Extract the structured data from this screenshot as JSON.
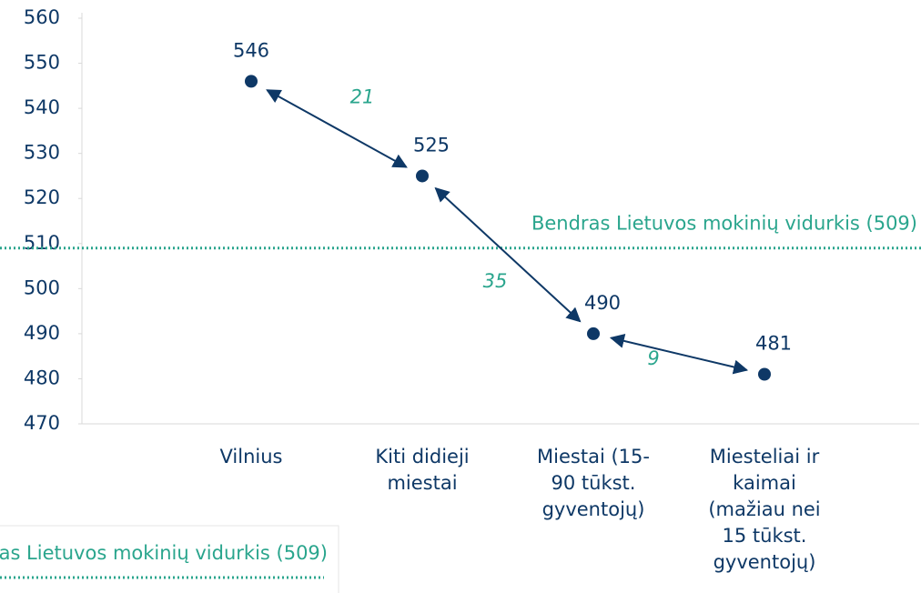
{
  "chart_data": {
    "type": "dot",
    "categories": [
      "Vilnius",
      "Kiti didieji\nmiestai",
      "Miestai (15-\n90 tūkst.\ngyventojų)",
      "Miesteliai ir\nkaimai\n(mažiau nei\n15 tūkst.\ngyventojų)"
    ],
    "values": [
      546,
      525,
      490,
      481
    ],
    "color": "#0e3866",
    "differences": [
      21,
      35,
      9
    ],
    "reference": {
      "name": "Bendras Lietuvos mokinių vidurkis (509)",
      "value": 509,
      "color": "#2aa58d"
    },
    "ylim": [
      470,
      560
    ],
    "yticks": [
      470,
      480,
      490,
      500,
      510,
      520,
      530,
      540,
      550,
      560
    ],
    "legend": "bottom-left"
  }
}
